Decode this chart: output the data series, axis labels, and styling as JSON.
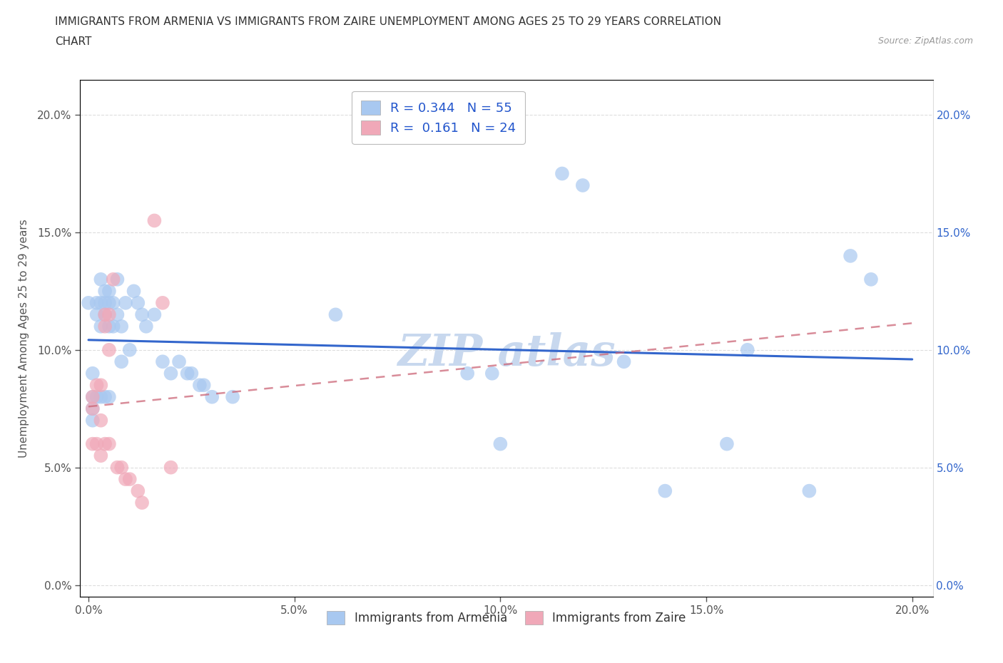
{
  "title_line1": "IMMIGRANTS FROM ARMENIA VS IMMIGRANTS FROM ZAIRE UNEMPLOYMENT AMONG AGES 25 TO 29 YEARS CORRELATION",
  "title_line2": "CHART",
  "source_text": "Source: ZipAtlas.com",
  "ylabel": "Unemployment Among Ages 25 to 29 years",
  "armenia_color": "#a8c8f0",
  "zaire_color": "#f0a8b8",
  "armenia_line_color": "#3366cc",
  "zaire_line_color": "#cc6677",
  "armenia_scatter_x": [
    0.001,
    0.001,
    0.002,
    0.002,
    0.002,
    0.003,
    0.003,
    0.003,
    0.003,
    0.004,
    0.004,
    0.004,
    0.004,
    0.004,
    0.005,
    0.005,
    0.005,
    0.006,
    0.006,
    0.006,
    0.007,
    0.007,
    0.007,
    0.008,
    0.009,
    0.009,
    0.01,
    0.011,
    0.012,
    0.013,
    0.014,
    0.015,
    0.016,
    0.017,
    0.019,
    0.02,
    0.021,
    0.022,
    0.024,
    0.025,
    0.026,
    0.028,
    0.03,
    0.033,
    0.06,
    0.095,
    0.1,
    0.11,
    0.12,
    0.13,
    0.14,
    0.155,
    0.16,
    0.175,
    0.185
  ],
  "armenia_scatter_y": [
    0.12,
    0.09,
    0.115,
    0.1,
    0.09,
    0.12,
    0.115,
    0.1,
    0.09,
    0.12,
    0.115,
    0.11,
    0.105,
    0.08,
    0.12,
    0.11,
    0.1,
    0.12,
    0.11,
    0.08,
    0.125,
    0.12,
    0.11,
    0.11,
    0.12,
    0.115,
    0.1,
    0.125,
    0.12,
    0.115,
    0.11,
    0.1,
    0.115,
    0.09,
    0.095,
    0.09,
    0.085,
    0.095,
    0.09,
    0.09,
    0.085,
    0.08,
    0.085,
    0.08,
    0.115,
    0.09,
    0.09,
    0.06,
    0.175,
    0.17,
    0.1,
    0.06,
    0.1,
    0.04,
    0.14
  ],
  "zaire_scatter_x": [
    0.001,
    0.001,
    0.002,
    0.002,
    0.003,
    0.003,
    0.003,
    0.004,
    0.004,
    0.004,
    0.005,
    0.005,
    0.005,
    0.006,
    0.006,
    0.007,
    0.007,
    0.008,
    0.009,
    0.01,
    0.012,
    0.013,
    0.016,
    0.018
  ],
  "zaire_scatter_y": [
    0.085,
    0.075,
    0.085,
    0.07,
    0.085,
    0.07,
    0.055,
    0.115,
    0.11,
    0.06,
    0.115,
    0.1,
    0.06,
    0.13,
    0.06,
    0.05,
    0.04,
    0.05,
    0.05,
    0.045,
    0.04,
    0.035,
    0.155,
    0.12
  ]
}
